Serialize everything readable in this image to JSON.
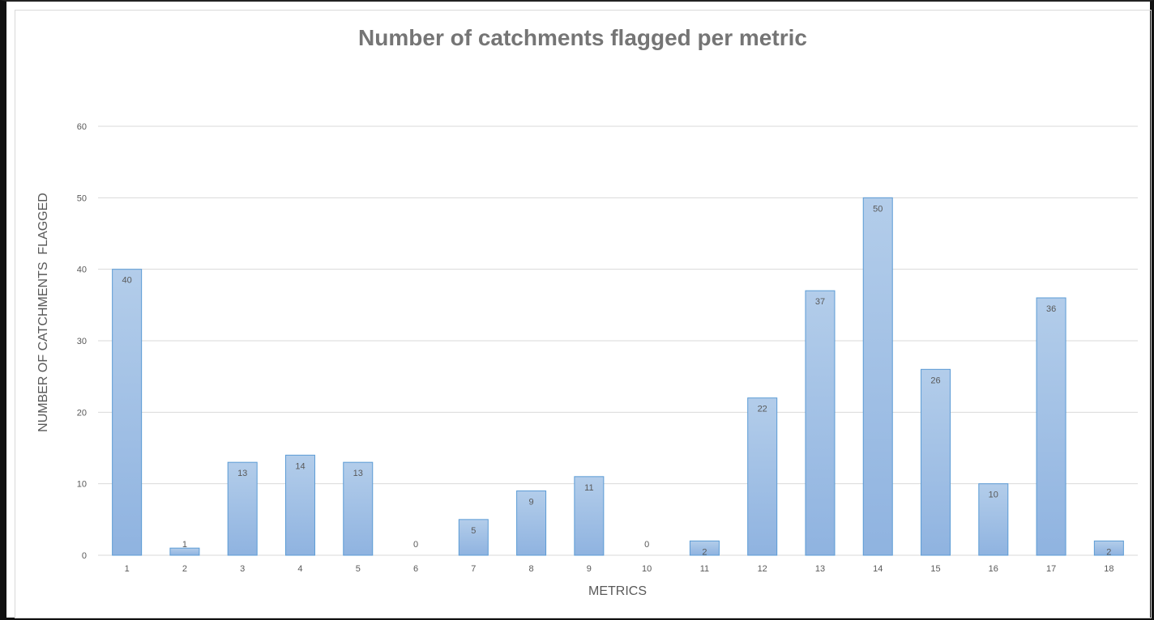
{
  "chart_data": {
    "type": "bar",
    "title": "Number of catchments flagged per metric",
    "xlabel": "METRICS",
    "ylabel": "NUMBER OF CATCHMENTS  FLAGGED",
    "categories": [
      "1",
      "2",
      "3",
      "4",
      "5",
      "6",
      "7",
      "8",
      "9",
      "10",
      "11",
      "12",
      "13",
      "14",
      "15",
      "16",
      "17",
      "18"
    ],
    "values": [
      40,
      1,
      13,
      14,
      13,
      0,
      5,
      9,
      11,
      0,
      2,
      22,
      37,
      50,
      26,
      10,
      36,
      2
    ],
    "ylim": [
      0,
      60
    ],
    "yticks": [
      0,
      10,
      20,
      30,
      40,
      50,
      60
    ],
    "grid": true,
    "legend": "none",
    "colors": {
      "bar_top": "#b3cdea",
      "bar_bottom": "#8fb3e0",
      "bar_stroke": "#5b9bd5",
      "grid": "#d9d9d9",
      "text": "#595959",
      "title": "#757575"
    }
  }
}
